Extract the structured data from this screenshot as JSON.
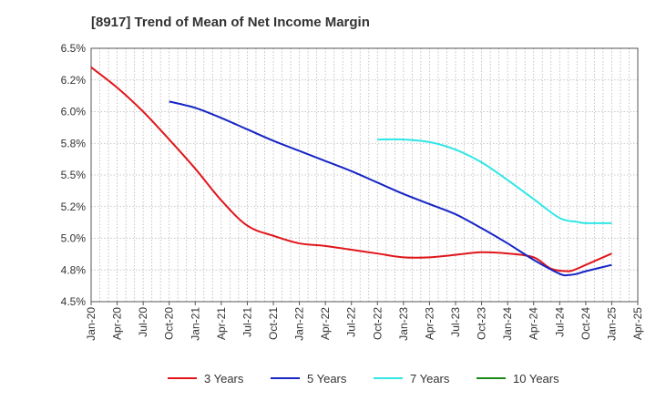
{
  "chart_data": {
    "type": "line",
    "title": "[8917]  Trend of Mean of Net Income Margin",
    "xlabel": "",
    "ylabel": "",
    "x_ticks": [
      "Jan-20",
      "Apr-20",
      "Jul-20",
      "Oct-20",
      "Jan-21",
      "Apr-21",
      "Jul-21",
      "Oct-21",
      "Jan-22",
      "Apr-22",
      "Jul-22",
      "Oct-22",
      "Jan-23",
      "Apr-23",
      "Jul-23",
      "Oct-23",
      "Jan-24",
      "Apr-24",
      "Jul-24",
      "Oct-24",
      "Jan-25",
      "Apr-25"
    ],
    "y_ticks": [
      "4.5%",
      "4.8%",
      "5.0%",
      "5.2%",
      "5.5%",
      "5.8%",
      "6.0%",
      "6.2%",
      "6.5%"
    ],
    "ylim": [
      4.5,
      6.5
    ],
    "grid": true,
    "legend_position": "bottom",
    "series": [
      {
        "name": "3 Years",
        "color": "#e0161b",
        "points": [
          [
            "Jan-20",
            6.35
          ],
          [
            "Apr-20",
            6.19
          ],
          [
            "Jul-20",
            6.0
          ],
          [
            "Oct-20",
            5.78
          ],
          [
            "Jan-21",
            5.55
          ],
          [
            "Apr-21",
            5.3
          ],
          [
            "Jul-21",
            5.1
          ],
          [
            "Oct-21",
            5.02
          ],
          [
            "Jan-22",
            4.96
          ],
          [
            "Apr-22",
            4.94
          ],
          [
            "Jul-22",
            4.91
          ],
          [
            "Oct-22",
            4.88
          ],
          [
            "Jan-23",
            4.85
          ],
          [
            "Apr-23",
            4.85
          ],
          [
            "Jul-23",
            4.87
          ],
          [
            "Oct-23",
            4.89
          ],
          [
            "Jan-24",
            4.88
          ],
          [
            "Apr-24",
            4.85
          ],
          [
            "Jun-24",
            4.76
          ],
          [
            "Aug-24",
            4.74
          ],
          [
            "Sep-24",
            4.76
          ],
          [
            "Oct-24",
            4.79
          ],
          [
            "Jan-25",
            4.88
          ]
        ]
      },
      {
        "name": "5 Years",
        "color": "#1625c4",
        "points": [
          [
            "Oct-20",
            6.08
          ],
          [
            "Jan-21",
            6.03
          ],
          [
            "Apr-21",
            5.95
          ],
          [
            "Jul-21",
            5.86
          ],
          [
            "Oct-21",
            5.77
          ],
          [
            "Jan-22",
            5.69
          ],
          [
            "Apr-22",
            5.61
          ],
          [
            "Jul-22",
            5.53
          ],
          [
            "Oct-22",
            5.44
          ],
          [
            "Jan-23",
            5.35
          ],
          [
            "Apr-23",
            5.27
          ],
          [
            "Jul-23",
            5.19
          ],
          [
            "Oct-23",
            5.08
          ],
          [
            "Jan-24",
            4.96
          ],
          [
            "Apr-24",
            4.83
          ],
          [
            "Jul-24",
            4.72
          ],
          [
            "Aug-24",
            4.71
          ],
          [
            "Sep-24",
            4.72
          ],
          [
            "Oct-24",
            4.74
          ],
          [
            "Jan-25",
            4.79
          ]
        ]
      },
      {
        "name": "7 Years",
        "color": "#30e6e6",
        "points": [
          [
            "Oct-22",
            5.78
          ],
          [
            "Jan-23",
            5.78
          ],
          [
            "Apr-23",
            5.76
          ],
          [
            "Jul-23",
            5.7
          ],
          [
            "Oct-23",
            5.6
          ],
          [
            "Jan-24",
            5.46
          ],
          [
            "Apr-24",
            5.31
          ],
          [
            "Jul-24",
            5.16
          ],
          [
            "Sep-24",
            5.13
          ],
          [
            "Oct-24",
            5.12
          ],
          [
            "Jan-25",
            5.12
          ]
        ]
      },
      {
        "name": "10 Years",
        "color": "#1a8a1a",
        "points": []
      }
    ]
  }
}
